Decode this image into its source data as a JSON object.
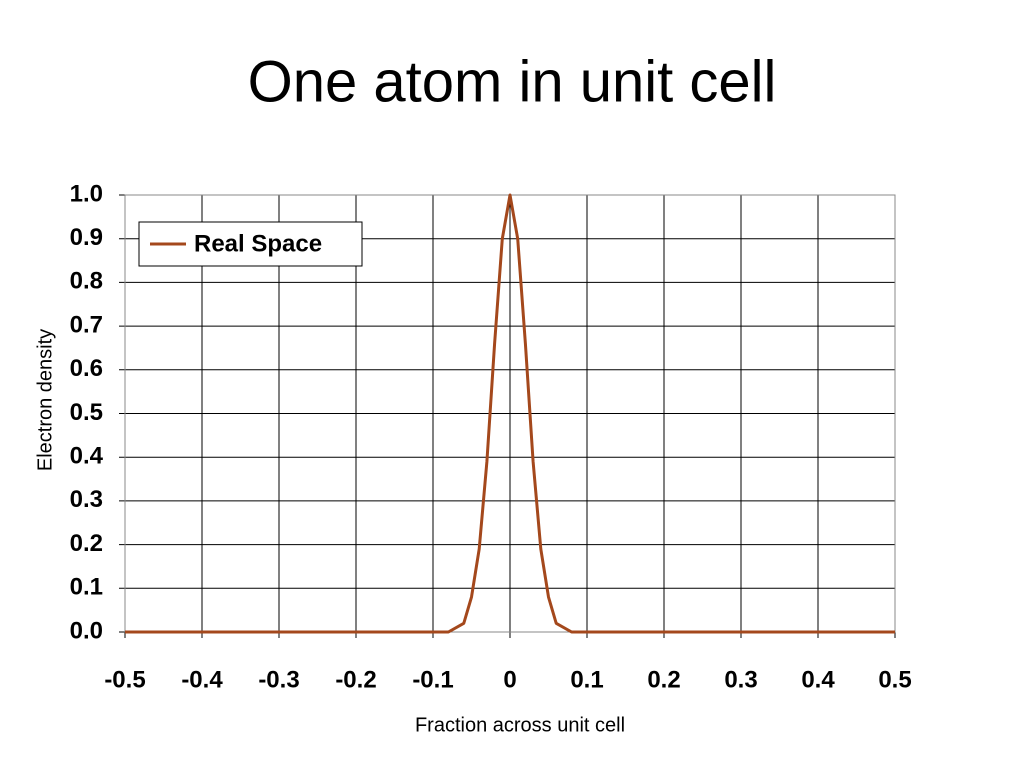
{
  "chart_data": {
    "type": "line",
    "title": "One atom in unit cell",
    "x_label": "Fraction across unit cell",
    "y_label": "Electron density",
    "x": [
      -0.5,
      -0.4,
      -0.3,
      -0.2,
      -0.1,
      -0.08,
      -0.06,
      -0.05,
      -0.04,
      -0.03,
      -0.02,
      -0.01,
      0,
      0.01,
      0.02,
      0.03,
      0.04,
      0.05,
      0.06,
      0.08,
      0.1,
      0.2,
      0.3,
      0.4,
      0.5
    ],
    "series": [
      {
        "name": "Real Space",
        "color": "#a4481c",
        "values": [
          0,
          0,
          0,
          0,
          0,
          0,
          0.02,
          0.08,
          0.19,
          0.39,
          0.66,
          0.9,
          1.0,
          0.9,
          0.66,
          0.39,
          0.19,
          0.08,
          0.02,
          0,
          0,
          0,
          0,
          0,
          0
        ]
      }
    ],
    "xlim": [
      -0.5,
      0.5
    ],
    "xticks": [
      -0.5,
      -0.4,
      -0.3,
      -0.2,
      -0.1,
      0,
      0.1,
      0.2,
      0.3,
      0.4,
      0.5
    ],
    "ylim": [
      0,
      1
    ],
    "yticks": [
      {
        "value": 0,
        "label": "0.0"
      },
      {
        "value": 0.1,
        "label": "0.1"
      },
      {
        "value": 0.2,
        "label": "0.2"
      },
      {
        "value": 0.3,
        "label": "0.3"
      },
      {
        "value": 0.4,
        "label": "0.4"
      },
      {
        "value": 0.5,
        "label": "0.5"
      },
      {
        "value": 0.6,
        "label": "0.6"
      },
      {
        "value": 0.7,
        "label": "0.7"
      },
      {
        "value": 0.8,
        "label": "0.8"
      },
      {
        "value": 0.9,
        "label": "0.9"
      },
      {
        "value": 1,
        "label": "1.0"
      }
    ],
    "grid": true,
    "legend": "upper left"
  }
}
